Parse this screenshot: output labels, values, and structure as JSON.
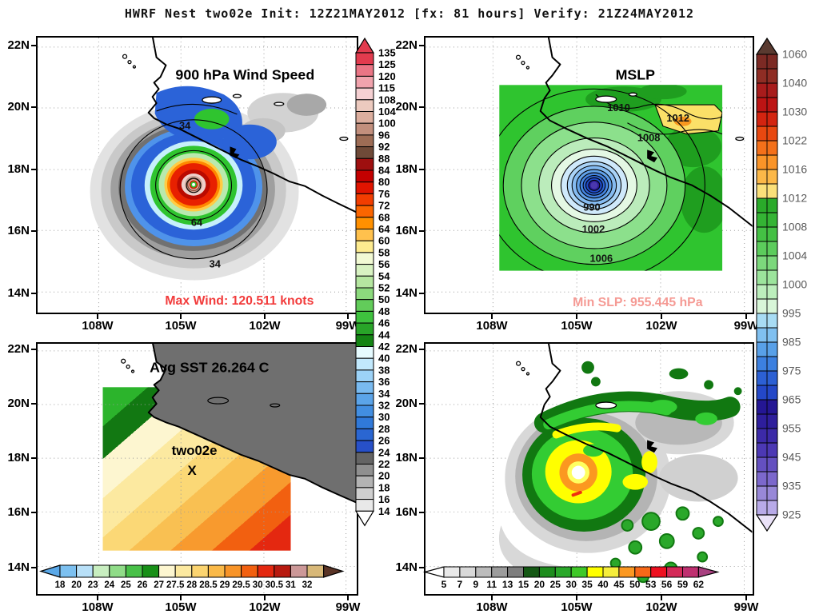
{
  "header": {
    "title": "HWRF Nest two02e Init: 12Z21MAY2012 [fx: 81 hours] Verify: 21Z24MAY2012"
  },
  "axes": {
    "lat_labels": [
      "22N",
      "20N",
      "18N",
      "16N",
      "14N"
    ],
    "lon_labels": [
      "108W",
      "105W",
      "102W",
      "99W"
    ]
  },
  "panels": {
    "wind": {
      "title": "900 hPa Wind Speed",
      "contour_labels": [
        "34",
        "64",
        "34"
      ],
      "annotation": "Max Wind: 120.511 knots",
      "annotation_color": "#f23b3b"
    },
    "mslp": {
      "title": "MSLP",
      "contour_labels": [
        "1010",
        "1012",
        "1008",
        "990",
        "1002",
        "1006"
      ],
      "annotation": "Min SLP: 955.445 hPa",
      "annotation_color": "#f59a94"
    },
    "sst": {
      "title": "Avg SST 26.264 C",
      "storm_label": "two02e",
      "storm_marker": "X"
    },
    "reflectivity": {}
  },
  "colorbars": {
    "wind": {
      "labels": [
        "135",
        "125",
        "120",
        "115",
        "108",
        "104",
        "100",
        "96",
        "92",
        "88",
        "84",
        "80",
        "76",
        "72",
        "68",
        "64",
        "60",
        "58",
        "56",
        "54",
        "52",
        "50",
        "48",
        "46",
        "44",
        "42",
        "40",
        "38",
        "36",
        "34",
        "32",
        "30",
        "28",
        "26",
        "24",
        "22",
        "20",
        "18",
        "16",
        "14"
      ],
      "colors": [
        "#e23b4e",
        "#ea7585",
        "#f1a3ad",
        "#f5d0d2",
        "#eccabf",
        "#dcae9e",
        "#c28f7d",
        "#9d6c55",
        "#6f4a38",
        "#9e0f0f",
        "#c30000",
        "#e01400",
        "#f23d00",
        "#fb6500",
        "#ff9000",
        "#ffc14d",
        "#fdeb8f",
        "#f2fad4",
        "#d8f2c2",
        "#b5e6a0",
        "#8cda7d",
        "#62cc5a",
        "#3ec23e",
        "#28a428",
        "#148414",
        "#e6fbff",
        "#c2e9fd",
        "#9cd2f7",
        "#79baf0",
        "#5ba4e9",
        "#428ee1",
        "#3079d9",
        "#2a66d2",
        "#2750c8",
        "#646464",
        "#8f8f8f",
        "#b3b3b3",
        "#cfcfcf",
        "#e9e9e9"
      ],
      "arrow_start": "#e23b4e",
      "arrow_end": "#ffffff"
    },
    "mslp": {
      "labels": [
        "1060",
        "1040",
        "1030",
        "1022",
        "1016",
        "1012",
        "1008",
        "1004",
        "1000",
        "995",
        "985",
        "975",
        "965",
        "955",
        "945",
        "935",
        "925"
      ],
      "colors": [
        "#7c2a24",
        "#8f2d24",
        "#a81c1c",
        "#bd1414",
        "#d32410",
        "#e84810",
        "#f4701a",
        "#fa9428",
        "#fcb848",
        "#fbe07a",
        "#2aaa2a",
        "#34b434",
        "#44c044",
        "#5ccc5c",
        "#7cd87c",
        "#9ce49c",
        "#bceebc",
        "#d8f6d8",
        "#a8dcf4",
        "#80c0f0",
        "#58a0e8",
        "#3c80e0",
        "#2c60d4",
        "#2448c8",
        "#241694",
        "#2e1e9c",
        "#3c2aa8",
        "#4c38b4",
        "#6450c0",
        "#7c68cc",
        "#9888d8",
        "#b8aae8"
      ],
      "arrow_start": "#5a3a30",
      "arrow_end": "#eae2f8"
    },
    "sst": {
      "labels": [
        "18",
        "20",
        "23",
        "24",
        "25",
        "26",
        "27",
        "27.5",
        "28",
        "28.5",
        "29",
        "29.5",
        "30",
        "30.5",
        "31",
        "32"
      ],
      "colors": [
        "#7cc0f0",
        "#b8e0f8",
        "#c8eec0",
        "#90dc88",
        "#48c048",
        "#189018",
        "#fdf6d0",
        "#fce9a0",
        "#fbd470",
        "#fab948",
        "#f89428",
        "#f26010",
        "#e42810",
        "#b81a10",
        "#cc9898",
        "#d8b878"
      ],
      "arrow_start": "#5aa8e8",
      "arrow_end": "#5a3426"
    },
    "refl": {
      "labels": [
        "5",
        "7",
        "9",
        "11",
        "13",
        "15",
        "20",
        "25",
        "30",
        "35",
        "40",
        "45",
        "50",
        "53",
        "56",
        "59",
        "62"
      ],
      "colors": [
        "#e9e9e9",
        "#d9d9d9",
        "#bcbcbc",
        "#9c9c9c",
        "#7e7e7e",
        "#145814",
        "#1d8c1d",
        "#2aa82a",
        "#3fc828",
        "#ffff00",
        "#f6ee3c",
        "#fb9822",
        "#f86818",
        "#ee1020",
        "#d42a58",
        "#bf3070"
      ],
      "arrow_start": "#ffffff",
      "arrow_end": "#a84080"
    }
  },
  "chart_data": [
    {
      "type": "heatmap",
      "title": "900 hPa Wind Speed",
      "units": "knots",
      "annotation": "Max Wind: 120.511 knots",
      "max_wind_knots": 120.511,
      "x_ticks": [
        "108W",
        "105W",
        "102W",
        "99W"
      ],
      "y_ticks": [
        "22N",
        "20N",
        "18N",
        "16N",
        "14N"
      ],
      "contour_labels": [
        34,
        64,
        34
      ],
      "levels": [
        14,
        16,
        18,
        20,
        22,
        24,
        26,
        28,
        30,
        32,
        34,
        36,
        38,
        40,
        42,
        44,
        46,
        48,
        50,
        52,
        54,
        56,
        58,
        60,
        64,
        68,
        72,
        76,
        80,
        84,
        88,
        92,
        96,
        100,
        104,
        108,
        115,
        120,
        125,
        135
      ],
      "legend_position": "right",
      "grid": true,
      "description": "Circular hurricane wind field centered near 17.5N 104W; concentric maxima from gray (weak) through blue, green, orange, red to pink core"
    },
    {
      "type": "heatmap",
      "title": "MSLP",
      "units": "hPa",
      "annotation": "Min SLP: 955.445 hPa",
      "min_slp_hpa": 955.445,
      "x_ticks": [
        "108W",
        "105W",
        "102W",
        "99W"
      ],
      "y_ticks": [
        "22N",
        "20N",
        "18N",
        "16N",
        "14N"
      ],
      "contour_labels": [
        1010,
        1012,
        1008,
        990,
        1002,
        1006
      ],
      "levels": [
        925,
        935,
        945,
        955,
        965,
        975,
        985,
        995,
        1000,
        1004,
        1008,
        1012,
        1016,
        1022,
        1030,
        1040,
        1060
      ],
      "legend_position": "right",
      "grid": true,
      "description": "Green pressure field with deep blue/purple low centered near 17.5N 104W; yellow high patch (1012) to the northeast"
    },
    {
      "type": "heatmap",
      "title": "Avg SST 26.264 C",
      "units": "C",
      "avg_sst_c": 26.264,
      "storm_id": "two02e",
      "x_ticks": [
        "108W",
        "105W",
        "102W",
        "99W"
      ],
      "y_ticks": [
        "22N",
        "20N",
        "18N",
        "16N",
        "14N"
      ],
      "levels": [
        18,
        20,
        23,
        24,
        25,
        26,
        27,
        27.5,
        28,
        28.5,
        29,
        29.5,
        30,
        30.5,
        31,
        32
      ],
      "legend_position": "bottom",
      "grid": true,
      "description": "SST banded field: green (~25-27C) in northwest grading through yellow and orange to red (~30C+) in southeast; land masked dark gray; storm position marked X"
    },
    {
      "type": "heatmap",
      "title": "",
      "x_ticks": [
        "108W",
        "105W",
        "102W",
        "99W"
      ],
      "y_ticks": [
        "22N",
        "20N",
        "18N",
        "16N",
        "14N"
      ],
      "levels": [
        5,
        7,
        9,
        11,
        13,
        15,
        20,
        25,
        30,
        35,
        40,
        45,
        50,
        53,
        56,
        59,
        62
      ],
      "legend_position": "bottom",
      "grid": true,
      "description": "Simulated reflectivity-style storm: gray outer shield, green rainbands, yellow/orange eyewall ring around clear white eye near 17.6N 104.2W"
    }
  ]
}
